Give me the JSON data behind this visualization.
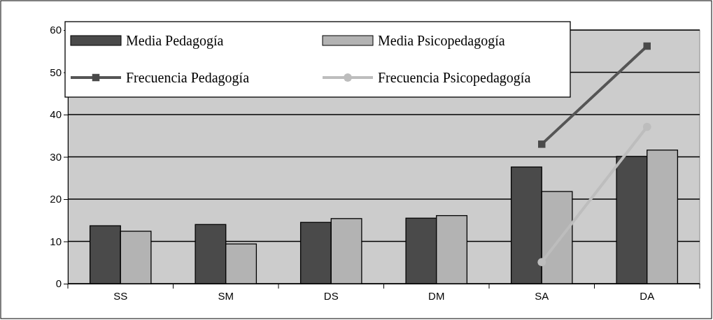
{
  "chart_data": {
    "type": "bar",
    "categories": [
      "SS",
      "SM",
      "DS",
      "DM",
      "SA",
      "DA"
    ],
    "series": [
      {
        "name": "Media Pedagogía",
        "color": "#4a4a4a",
        "values": [
          13.7,
          14.0,
          14.5,
          15.5,
          27.6,
          30.1
        ]
      },
      {
        "name": "Media Psicopedagogía",
        "color": "#b3b3b3",
        "values": [
          12.4,
          9.4,
          15.4,
          16.1,
          21.8,
          31.6
        ]
      },
      {
        "name": "Frecuencia Pedagogía",
        "type": "line",
        "marker": "square",
        "color": "#555555",
        "values": [
          null,
          null,
          null,
          null,
          33,
          56.2
        ]
      },
      {
        "name": "Frecuencia Psicopedagogía",
        "type": "line",
        "marker": "circle",
        "color": "#bdbdbd",
        "values": [
          null,
          null,
          null,
          null,
          5.1,
          37.1
        ]
      }
    ],
    "ylim": [
      0,
      60
    ],
    "yticks": [
      0,
      10,
      20,
      30,
      40,
      50,
      60
    ],
    "grid": "y",
    "legend": "top left"
  }
}
